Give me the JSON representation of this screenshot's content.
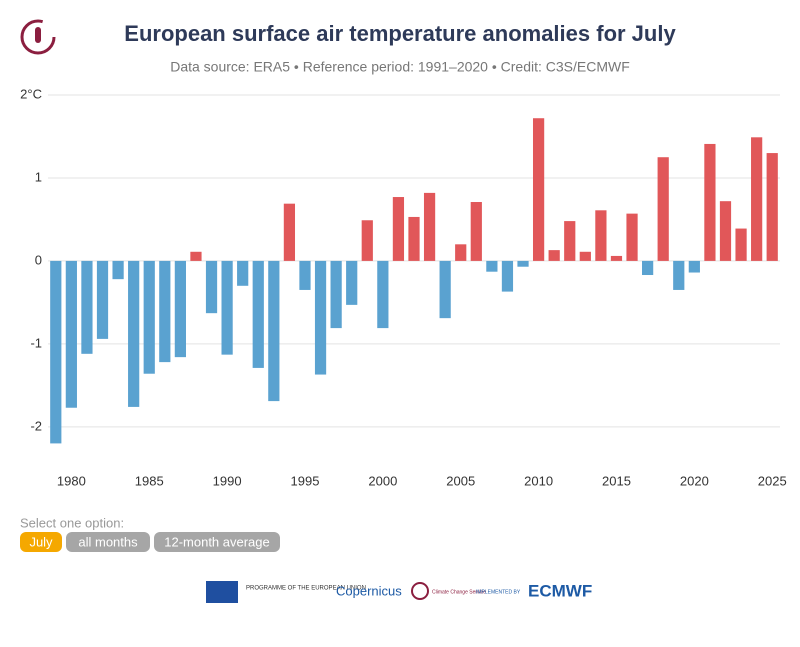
{
  "chart_data": {
    "type": "bar",
    "title": "European surface air temperature anomalies for July",
    "subtitle": "Data source: ERA5 • Reference period: 1991–2020 • Credit: C3S/ECMWF",
    "x": [
      1979,
      1980,
      1981,
      1982,
      1983,
      1984,
      1985,
      1986,
      1987,
      1988,
      1989,
      1990,
      1991,
      1992,
      1993,
      1994,
      1995,
      1996,
      1997,
      1998,
      1999,
      2000,
      2001,
      2002,
      2003,
      2004,
      2005,
      2006,
      2007,
      2008,
      2009,
      2010,
      2011,
      2012,
      2013,
      2014,
      2015,
      2016,
      2017,
      2018,
      2019,
      2020,
      2021,
      2022,
      2023,
      2024,
      2025
    ],
    "values": [
      -2.2,
      -1.77,
      -1.12,
      -0.94,
      -0.22,
      -1.76,
      -1.36,
      -1.22,
      -1.16,
      0.11,
      -0.63,
      -1.13,
      -0.3,
      -1.29,
      -1.69,
      0.69,
      -0.35,
      -1.37,
      -0.81,
      -0.53,
      0.49,
      -0.81,
      0.77,
      0.53,
      0.82,
      -0.69,
      0.2,
      0.71,
      -0.13,
      -0.37,
      -0.07,
      1.72,
      0.13,
      0.48,
      0.11,
      0.61,
      0.06,
      0.57,
      -0.17,
      1.25,
      -0.35,
      -0.14,
      1.41,
      0.72,
      0.39,
      1.49,
      1.3
    ],
    "positive_color": "#e15759",
    "negative_color": "#5aa2d0",
    "xlim": [
      1978.5,
      2025.5
    ],
    "xticks": [
      1980,
      1985,
      1990,
      1995,
      2000,
      2005,
      2010,
      2015,
      2020,
      2025
    ],
    "ylim": [
      -2.4,
      2
    ],
    "yticks": [
      {
        "value": 2,
        "label": "2°C"
      },
      1,
      0,
      -1,
      -2
    ],
    "grid": true
  },
  "controls": {
    "prompt": "Select one option:",
    "options": [
      "July",
      "all months",
      "12-month average"
    ],
    "selected": 0
  },
  "footer": {
    "eu": "PROGRAMME OF THE EUROPEAN UNION",
    "copernicus": "Copernicus",
    "c3s": "Climate Change Service",
    "implemented": "IMPLEMENTED BY",
    "ecmwf": "ECMWF"
  }
}
